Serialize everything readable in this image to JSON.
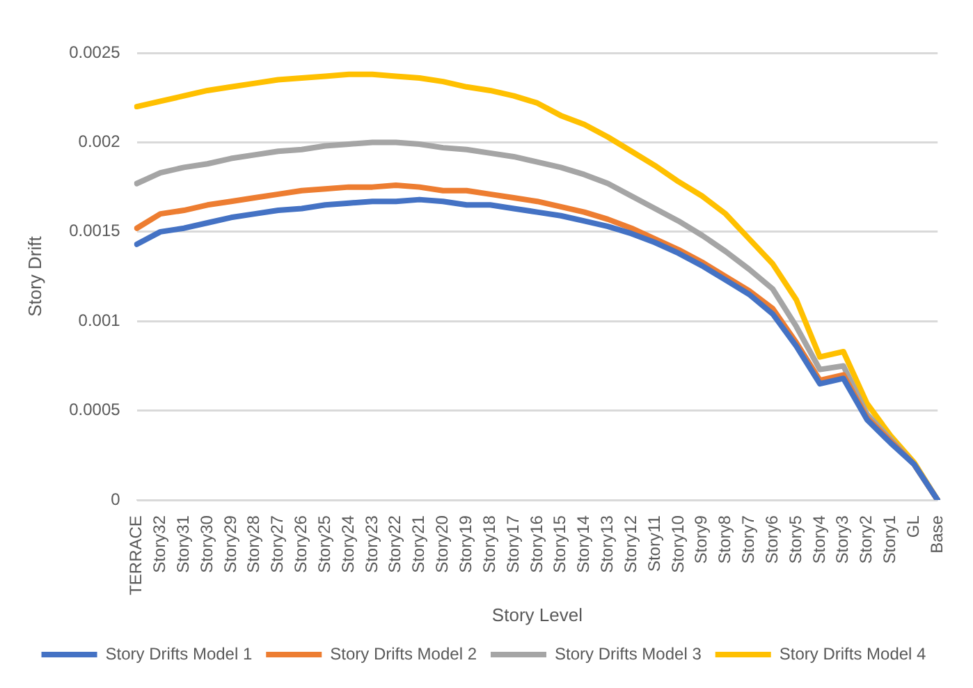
{
  "chart_data": {
    "type": "line",
    "xlabel": "Story Level",
    "ylabel": "Story Drift",
    "categories": [
      "TERRACE",
      "Story32",
      "Story31",
      "Story30",
      "Story29",
      "Story28",
      "Story27",
      "Story26",
      "Story25",
      "Story24",
      "Story23",
      "Story22",
      "Story21",
      "Story20",
      "Story19",
      "Story18",
      "Story17",
      "Story16",
      "Story15",
      "Story14",
      "Story13",
      "Story12",
      "Story11",
      "Story10",
      "Story9",
      "Story8",
      "Story7",
      "Story6",
      "Story5",
      "Story4",
      "Story3",
      "Story2",
      "Story1",
      "GL",
      "Base"
    ],
    "series": [
      {
        "name": "Story Drifts Model 1",
        "color": "#4472c4",
        "values": [
          0.00143,
          0.0015,
          0.00152,
          0.00155,
          0.00158,
          0.0016,
          0.00162,
          0.00163,
          0.00165,
          0.00166,
          0.00167,
          0.00167,
          0.00168,
          0.00167,
          0.00165,
          0.00165,
          0.00163,
          0.00161,
          0.00159,
          0.00156,
          0.00153,
          0.00149,
          0.00144,
          0.00138,
          0.00131,
          0.00123,
          0.00115,
          0.00104,
          0.00086,
          0.00065,
          0.00068,
          0.00045,
          0.00032,
          0.0002,
          0
        ]
      },
      {
        "name": "Story Drifts Model 2",
        "color": "#ed7d31",
        "values": [
          0.00152,
          0.0016,
          0.00162,
          0.00165,
          0.00167,
          0.00169,
          0.00171,
          0.00173,
          0.00174,
          0.00175,
          0.00175,
          0.00176,
          0.00175,
          0.00173,
          0.00173,
          0.00171,
          0.00169,
          0.00167,
          0.00164,
          0.00161,
          0.00157,
          0.00152,
          0.00146,
          0.0014,
          0.00133,
          0.00125,
          0.00117,
          0.00107,
          0.00088,
          0.00067,
          0.0007,
          0.00046,
          0.00033,
          0.0002,
          0
        ]
      },
      {
        "name": "Story Drifts Model 3",
        "color": "#a5a5a5",
        "values": [
          0.00177,
          0.00183,
          0.00186,
          0.00188,
          0.00191,
          0.00193,
          0.00195,
          0.00196,
          0.00198,
          0.00199,
          0.002,
          0.002,
          0.00199,
          0.00197,
          0.00196,
          0.00194,
          0.00192,
          0.00189,
          0.00186,
          0.00182,
          0.00177,
          0.0017,
          0.00163,
          0.00156,
          0.00148,
          0.00139,
          0.00129,
          0.00118,
          0.00097,
          0.00073,
          0.00075,
          0.00048,
          0.00034,
          0.0002,
          0
        ]
      },
      {
        "name": "Story Drifts Model 4",
        "color": "#ffc000",
        "values": [
          0.0022,
          0.00223,
          0.00226,
          0.00229,
          0.00231,
          0.00233,
          0.00235,
          0.00236,
          0.00237,
          0.00238,
          0.00238,
          0.00237,
          0.00236,
          0.00234,
          0.00231,
          0.00229,
          0.00226,
          0.00222,
          0.00215,
          0.0021,
          0.00203,
          0.00195,
          0.00187,
          0.00178,
          0.0017,
          0.0016,
          0.00146,
          0.00132,
          0.00112,
          0.0008,
          0.00083,
          0.00054,
          0.00036,
          0.00021,
          0
        ]
      }
    ],
    "ylim": [
      0,
      0.0025
    ],
    "yticks": [
      0,
      0.0005,
      0.001,
      0.0015,
      0.002,
      0.0025
    ],
    "grid": "y",
    "legend": "bottom",
    "marker": "none",
    "line_style": "solid"
  }
}
